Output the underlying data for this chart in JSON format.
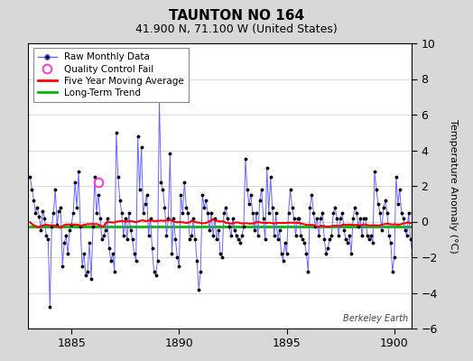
{
  "title": "TAUNTON NO 164",
  "subtitle": "41.900 N, 71.100 W (United States)",
  "ylabel": "Temperature Anomaly (°C)",
  "watermark": "Berkeley Earth",
  "xlim": [
    1883.0,
    1900.8
  ],
  "ylim": [
    -6,
    10
  ],
  "yticks": [
    -6,
    -4,
    -2,
    0,
    2,
    4,
    6,
    8,
    10
  ],
  "xticks": [
    1885,
    1890,
    1895,
    1900
  ],
  "bg_color": "#d8d8d8",
  "plot_bg_color": "#ffffff",
  "raw_line_color": "#6666ff",
  "raw_marker_color": "#000000",
  "moving_avg_color": "#ff0000",
  "trend_color": "#00bb00",
  "qc_fail_color": "#ff44cc",
  "raw_data": [
    2.5,
    1.8,
    1.2,
    0.5,
    0.8,
    0.3,
    -0.5,
    0.6,
    0.2,
    -0.8,
    -1.0,
    -4.8,
    -0.3,
    0.5,
    1.8,
    -0.2,
    0.6,
    0.8,
    -2.5,
    -1.2,
    -0.8,
    -1.8,
    -0.5,
    -0.2,
    0.5,
    2.2,
    0.8,
    2.8,
    -0.3,
    -2.5,
    -1.8,
    -3.0,
    -2.8,
    -1.2,
    -3.2,
    -0.3,
    2.5,
    0.5,
    1.5,
    0.2,
    -1.0,
    -0.8,
    -0.5,
    0.2,
    -1.5,
    -2.2,
    -1.8,
    -2.8,
    5.0,
    2.5,
    1.2,
    0.5,
    -0.8,
    0.2,
    -1.0,
    0.5,
    -0.5,
    -1.0,
    -1.8,
    -2.2,
    4.8,
    1.8,
    4.2,
    0.5,
    1.0,
    1.5,
    -0.8,
    0.2,
    -1.5,
    -2.8,
    -3.0,
    -2.2,
    6.8,
    2.2,
    1.8,
    0.8,
    -0.8,
    0.2,
    3.8,
    -1.8,
    0.2,
    -1.0,
    -2.0,
    -2.5,
    1.5,
    0.5,
    2.2,
    0.8,
    0.5,
    -1.0,
    -0.8,
    0.2,
    -1.0,
    -2.2,
    -3.8,
    -2.8,
    1.5,
    0.8,
    1.2,
    0.5,
    -0.5,
    0.5,
    -0.8,
    0.2,
    -1.0,
    -0.5,
    -1.8,
    -2.0,
    0.5,
    0.8,
    0.2,
    -0.3,
    -0.8,
    0.2,
    -0.5,
    -0.8,
    -1.0,
    -1.2,
    -0.8,
    -0.3,
    3.5,
    1.8,
    1.0,
    1.5,
    0.5,
    -0.5,
    0.5,
    -0.8,
    1.2,
    1.8,
    0.2,
    -1.0,
    3.0,
    0.5,
    2.5,
    0.8,
    -0.8,
    0.5,
    -1.0,
    -0.5,
    -1.8,
    -2.2,
    -1.2,
    -1.8,
    0.5,
    1.8,
    0.8,
    0.2,
    -0.8,
    0.2,
    0.2,
    -0.8,
    -1.0,
    -1.2,
    -1.8,
    -2.8,
    0.8,
    1.5,
    0.5,
    -0.3,
    0.2,
    -0.8,
    0.2,
    0.5,
    -1.0,
    -1.8,
    -1.5,
    -1.0,
    -0.8,
    0.5,
    0.8,
    0.2,
    -0.8,
    0.2,
    0.5,
    -0.5,
    -1.0,
    -1.2,
    -0.8,
    -1.8,
    0.2,
    0.8,
    0.5,
    -0.3,
    0.2,
    -0.8,
    0.2,
    0.2,
    -0.8,
    -1.0,
    -0.8,
    -1.2,
    2.8,
    1.8,
    1.0,
    0.5,
    -0.5,
    0.8,
    1.2,
    0.5,
    -0.8,
    -1.2,
    -2.8,
    -2.0,
    2.5,
    1.0,
    1.8,
    0.5,
    0.2,
    -0.5,
    -0.8,
    0.5,
    -1.0,
    -1.8,
    -1.2,
    -1.5
  ],
  "qc_fail_time": 1886.25,
  "qc_fail_value": 2.2,
  "trend_value": -0.3
}
